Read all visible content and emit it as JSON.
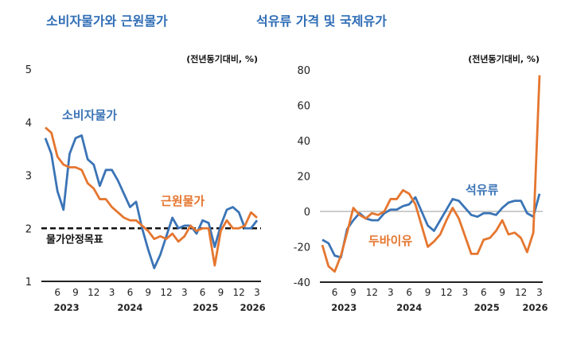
{
  "titles": {
    "left": "소비자물가와 근원물가",
    "right": "석유류 가격 및 국제유가"
  },
  "colors": {
    "blue": "#3b74b6",
    "orange": "#e5762f",
    "title": "#2f6db5"
  },
  "chart_data": [
    {
      "type": "line",
      "unit": "(전년동기대비, %)",
      "ylim": [
        1,
        5
      ],
      "yticks": [
        1,
        2,
        3,
        4,
        5
      ],
      "x_start": "2023-04",
      "x_end": "2026-03",
      "xtick_labels": [
        "6",
        "9",
        "12",
        "3",
        "6",
        "9",
        "12",
        "3",
        "6",
        "9",
        "12",
        "3"
      ],
      "year_labels": [
        "2023",
        "2024",
        "2025",
        "2026"
      ],
      "reference_line": {
        "value": 2,
        "label": "물가안정목표"
      },
      "series": [
        {
          "name": "소비자물가",
          "color": "blue",
          "values": [
            3.7,
            3.4,
            2.7,
            2.35,
            3.4,
            3.7,
            3.75,
            3.3,
            3.2,
            2.8,
            3.1,
            3.1,
            2.9,
            2.65,
            2.4,
            2.5,
            2.0,
            1.6,
            1.25,
            1.5,
            1.85,
            2.2,
            2.0,
            2.05,
            2.05,
            1.9,
            2.15,
            2.1,
            1.65,
            2.05,
            2.35,
            2.4,
            2.3,
            2.0,
            2.0,
            2.15
          ]
        },
        {
          "name": "근원물가",
          "color": "orange",
          "values": [
            3.9,
            3.8,
            3.35,
            3.2,
            3.15,
            3.15,
            3.1,
            2.85,
            2.75,
            2.55,
            2.55,
            2.4,
            2.3,
            2.2,
            2.15,
            2.15,
            2.05,
            1.95,
            1.8,
            1.85,
            1.8,
            1.9,
            1.75,
            1.85,
            2.05,
            1.95,
            2.0,
            2.0,
            1.3,
            1.95,
            2.15,
            2.0,
            2.0,
            2.05,
            2.3,
            2.2
          ]
        }
      ]
    },
    {
      "type": "line",
      "unit": "(전년동기대비, %)",
      "ylim": [
        -40,
        80
      ],
      "yticks": [
        -40,
        -20,
        0,
        20,
        40,
        60,
        80
      ],
      "x_start": "2023-04",
      "x_end": "2026-03",
      "xtick_labels": [
        "6",
        "9",
        "12",
        "3",
        "6",
        "9",
        "12",
        "3",
        "6",
        "9",
        "12",
        "3"
      ],
      "year_labels": [
        "2023",
        "2024",
        "2025",
        "2026"
      ],
      "series": [
        {
          "name": "석유류",
          "color": "blue",
          "values": [
            -16,
            -18,
            -25,
            -26,
            -10,
            -5,
            -1,
            -4,
            -5,
            -5,
            -1,
            1,
            1,
            3,
            4,
            8,
            0,
            -8,
            -11,
            -5,
            1,
            7,
            6,
            2,
            -2,
            -3,
            -1,
            -1,
            -2,
            2,
            5,
            6,
            6,
            -1,
            -3,
            10
          ]
        },
        {
          "name": "두바이유",
          "color": "orange",
          "values": [
            -19,
            -31,
            -34,
            -25,
            -12,
            2,
            -2,
            -4,
            -1,
            -2,
            0,
            7,
            7,
            12,
            10,
            4,
            -8,
            -20,
            -17,
            -13,
            -5,
            2,
            -4,
            -14,
            -24,
            -24,
            -16,
            -15,
            -11,
            -5,
            -13,
            -12,
            -15,
            -23,
            -12,
            77
          ]
        }
      ]
    }
  ]
}
